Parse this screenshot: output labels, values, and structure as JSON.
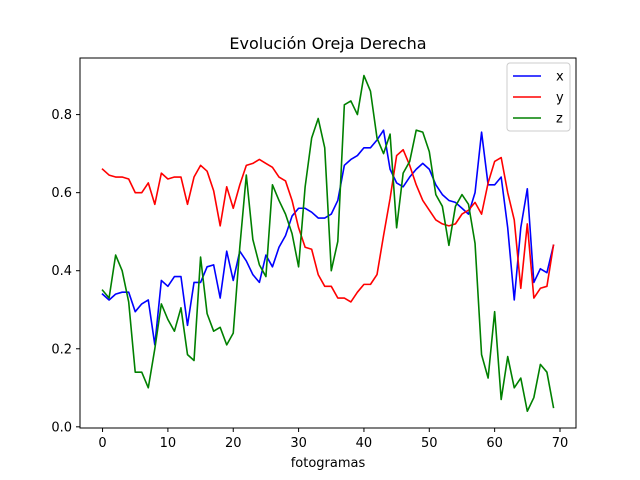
{
  "chart_data": {
    "type": "line",
    "title": "Evolución Oreja Derecha",
    "xlabel": "fotogramas",
    "ylabel": "",
    "xlim": [
      -3.45,
      72.45
    ],
    "ylim": [
      -0.003,
      0.945
    ],
    "x_ticks": [
      0,
      10,
      20,
      30,
      40,
      50,
      60,
      70
    ],
    "y_ticks": [
      0.0,
      0.2,
      0.4,
      0.6,
      0.8
    ],
    "y_tick_labels": [
      "0.0",
      "0.2",
      "0.4",
      "0.6",
      "0.8"
    ],
    "grid": false,
    "legend": "top-right",
    "series": [
      {
        "name": "x",
        "color": "#0000ff",
        "values": [
          0.34,
          0.325,
          0.34,
          0.345,
          0.345,
          0.295,
          0.315,
          0.325,
          0.21,
          0.375,
          0.36,
          0.385,
          0.385,
          0.26,
          0.37,
          0.37,
          0.41,
          0.415,
          0.33,
          0.45,
          0.375,
          0.45,
          0.425,
          0.39,
          0.37,
          0.44,
          0.41,
          0.46,
          0.49,
          0.54,
          0.56,
          0.56,
          0.55,
          0.535,
          0.535,
          0.545,
          0.58,
          0.67,
          0.685,
          0.695,
          0.715,
          0.715,
          0.735,
          0.76,
          0.66,
          0.625,
          0.615,
          0.64,
          0.66,
          0.675,
          0.66,
          0.62,
          0.595,
          0.58,
          0.575,
          0.56,
          0.545,
          0.6,
          0.755,
          0.62,
          0.62,
          0.64,
          0.51,
          0.325,
          0.51,
          0.61,
          0.37,
          0.405,
          0.395,
          0.465
        ]
      },
      {
        "name": "y",
        "color": "#ff0000",
        "values": [
          0.66,
          0.645,
          0.64,
          0.64,
          0.635,
          0.6,
          0.6,
          0.625,
          0.57,
          0.65,
          0.635,
          0.64,
          0.64,
          0.57,
          0.64,
          0.67,
          0.655,
          0.605,
          0.515,
          0.615,
          0.56,
          0.62,
          0.67,
          0.675,
          0.685,
          0.675,
          0.665,
          0.64,
          0.63,
          0.58,
          0.51,
          0.46,
          0.455,
          0.39,
          0.36,
          0.36,
          0.33,
          0.33,
          0.32,
          0.345,
          0.365,
          0.365,
          0.39,
          0.49,
          0.585,
          0.695,
          0.71,
          0.67,
          0.62,
          0.58,
          0.555,
          0.53,
          0.52,
          0.515,
          0.52,
          0.545,
          0.555,
          0.575,
          0.545,
          0.625,
          0.68,
          0.69,
          0.6,
          0.53,
          0.355,
          0.52,
          0.33,
          0.355,
          0.36,
          0.465
        ]
      },
      {
        "name": "z",
        "color": "#008000",
        "values": [
          0.35,
          0.33,
          0.44,
          0.4,
          0.32,
          0.14,
          0.14,
          0.1,
          0.2,
          0.315,
          0.275,
          0.245,
          0.305,
          0.185,
          0.17,
          0.435,
          0.29,
          0.245,
          0.255,
          0.21,
          0.24,
          0.46,
          0.645,
          0.48,
          0.415,
          0.385,
          0.62,
          0.58,
          0.545,
          0.495,
          0.41,
          0.615,
          0.74,
          0.79,
          0.715,
          0.4,
          0.475,
          0.825,
          0.835,
          0.8,
          0.9,
          0.86,
          0.74,
          0.7,
          0.75,
          0.51,
          0.65,
          0.68,
          0.76,
          0.755,
          0.705,
          0.595,
          0.565,
          0.465,
          0.565,
          0.595,
          0.57,
          0.47,
          0.185,
          0.125,
          0.295,
          0.07,
          0.18,
          0.1,
          0.125,
          0.04,
          0.075,
          0.16,
          0.14,
          0.05
        ]
      }
    ]
  }
}
